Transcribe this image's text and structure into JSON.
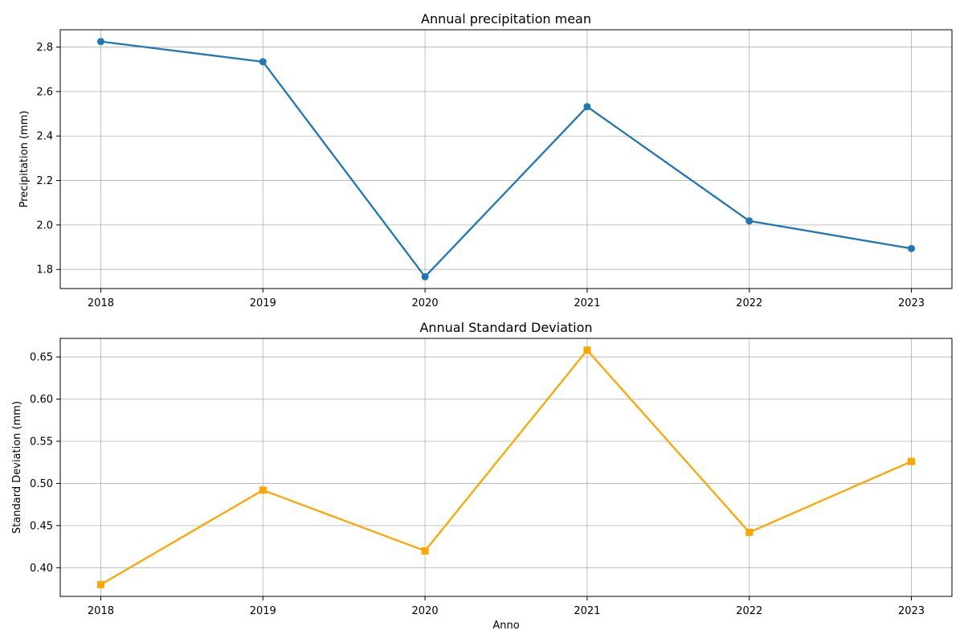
{
  "chart_data": [
    {
      "type": "line",
      "title": "Annual precipitation mean",
      "xlabel": "",
      "ylabel": "Precipitation (mm)",
      "x": [
        2018,
        2019,
        2020,
        2021,
        2022,
        2023
      ],
      "xticks": [
        "2018",
        "2019",
        "2020",
        "2021",
        "2022",
        "2023"
      ],
      "series": [
        {
          "values": [
            2.825,
            2.734,
            1.767,
            2.532,
            2.018,
            1.894
          ],
          "color": "#1f77b4",
          "marker": "circle"
        }
      ],
      "xlim": [
        2017.75,
        2023.25
      ],
      "ylim": [
        1.714,
        2.878
      ],
      "yticks": [
        1.8,
        2.0,
        2.2,
        2.4,
        2.6,
        2.8
      ],
      "ytick_labels": [
        "1.8",
        "2.0",
        "2.2",
        "2.4",
        "2.6",
        "2.8"
      ],
      "grid": true,
      "legend": "none"
    },
    {
      "type": "line",
      "title": "Annual Standard Deviation",
      "xlabel": "Anno",
      "ylabel": "Standard Deviation (mm)",
      "x": [
        2018,
        2019,
        2020,
        2021,
        2022,
        2023
      ],
      "xticks": [
        "2018",
        "2019",
        "2020",
        "2021",
        "2022",
        "2023"
      ],
      "series": [
        {
          "values": [
            0.38,
            0.492,
            0.42,
            0.658,
            0.442,
            0.526
          ],
          "color": "#ffa500",
          "marker": "square"
        }
      ],
      "xlim": [
        2017.75,
        2023.25
      ],
      "ylim": [
        0.366,
        0.672
      ],
      "yticks": [
        0.4,
        0.45,
        0.5,
        0.55,
        0.6,
        0.65
      ],
      "ytick_labels": [
        "0.40",
        "0.45",
        "0.50",
        "0.55",
        "0.60",
        "0.65"
      ],
      "grid": true,
      "legend": "none"
    }
  ]
}
